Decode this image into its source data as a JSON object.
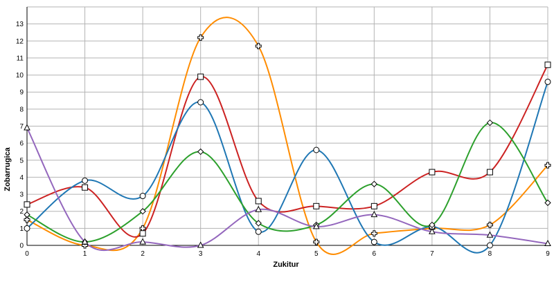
{
  "chart_data": {
    "type": "line",
    "smooth": true,
    "title": "",
    "xlabel": "Zukitur",
    "ylabel": "Zobarrugica",
    "x": [
      0,
      1,
      2,
      3,
      4,
      5,
      6,
      7,
      8,
      9
    ],
    "x_ticks": [
      "0",
      "1",
      "2",
      "3",
      "4",
      "5",
      "6",
      "7",
      "8",
      "9"
    ],
    "xlim": [
      0,
      9
    ],
    "ylim": [
      0,
      14
    ],
    "y_ticks": [
      "0",
      "1",
      "2",
      "3",
      "4",
      "5",
      "6",
      "7",
      "8",
      "9",
      "10",
      "11",
      "12",
      "13"
    ],
    "grid": true,
    "legend": "none",
    "series": [
      {
        "color": "#ff8c00",
        "marker": "cross",
        "values": [
          1.5,
          0.0,
          1.0,
          12.2,
          11.7,
          0.2,
          0.7,
          1.0,
          1.2,
          4.7
        ]
      },
      {
        "color": "#cc2222",
        "marker": "square",
        "values": [
          2.4,
          3.4,
          0.7,
          9.9,
          2.6,
          2.3,
          2.3,
          4.3,
          4.3,
          10.6
        ]
      },
      {
        "color": "#1f77b4",
        "marker": "circle",
        "values": [
          1.0,
          3.8,
          2.9,
          8.4,
          0.8,
          5.6,
          0.2,
          1.1,
          0.0,
          9.6
        ]
      },
      {
        "color": "#2ca02c",
        "marker": "diamond",
        "values": [
          1.8,
          0.2,
          2.0,
          5.5,
          1.3,
          1.2,
          3.6,
          1.2,
          7.2,
          2.5
        ]
      },
      {
        "color": "#9467bd",
        "marker": "triangle",
        "values": [
          6.9,
          0.2,
          0.2,
          0.0,
          2.1,
          1.1,
          1.8,
          0.8,
          0.6,
          0.1
        ]
      }
    ]
  }
}
